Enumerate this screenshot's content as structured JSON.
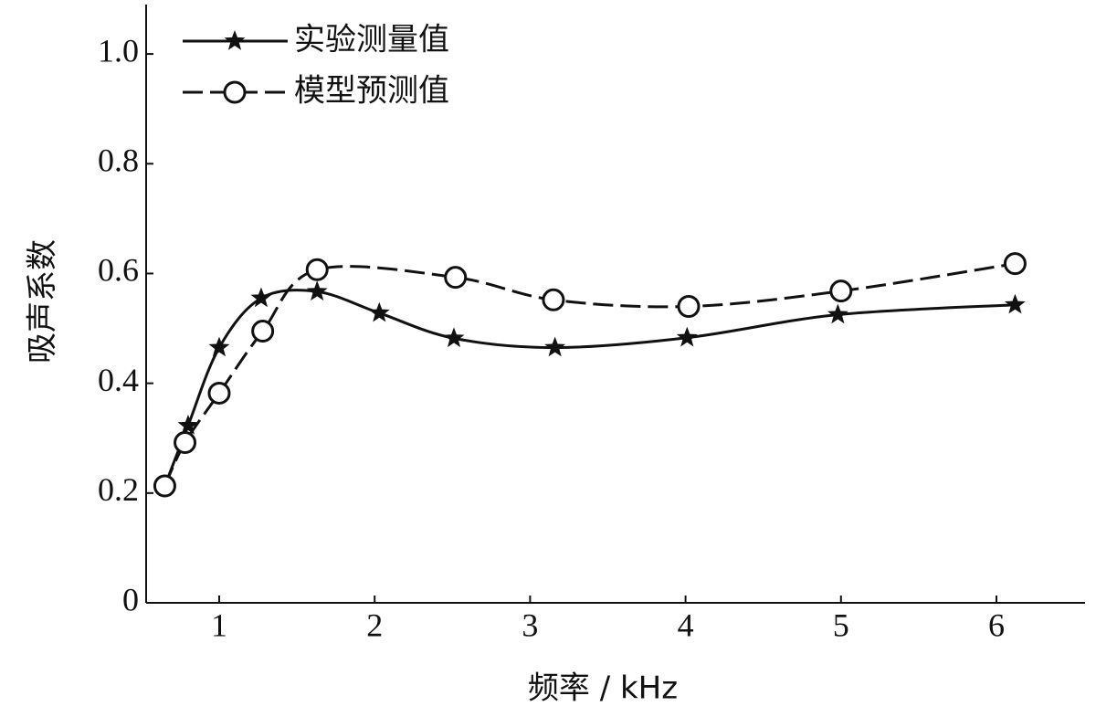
{
  "chart_data": {
    "type": "line",
    "xlabel": "频率 / kHz",
    "ylabel": "吸声系数",
    "xlim": [
      0.53,
      6.57
    ],
    "ylim": [
      0,
      1.09
    ],
    "xticks": [
      1,
      2,
      3,
      4,
      5,
      6
    ],
    "yticks": [
      0,
      0.2,
      0.4,
      0.6,
      0.8,
      {
        "value": 1,
        "label": "1.0"
      }
    ],
    "legend": "upper left",
    "series": [
      {
        "name": "实验测量值",
        "color": "#111111",
        "marker": "star",
        "dashed": false,
        "x": [
          0.65,
          0.8,
          1.0,
          1.27,
          1.63,
          2.03,
          2.51,
          3.16,
          4.01,
          4.98,
          6.12
        ],
        "values": [
          0.213,
          0.323,
          0.465,
          0.555,
          0.567,
          0.528,
          0.482,
          0.465,
          0.483,
          0.525,
          0.543
        ]
      },
      {
        "name": "模型预测值",
        "color": "#111111",
        "marker": "circle",
        "dashed": true,
        "x": [
          0.65,
          0.78,
          1.0,
          1.28,
          1.63,
          2.52,
          3.15,
          4.02,
          5.0,
          6.12
        ],
        "values": [
          0.213,
          0.292,
          0.382,
          0.495,
          0.607,
          0.593,
          0.552,
          0.54,
          0.568,
          0.618
        ]
      }
    ]
  }
}
